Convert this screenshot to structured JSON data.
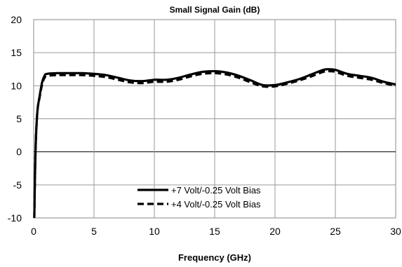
{
  "chart_data": {
    "type": "line",
    "title": "Small Signal Gain (dB)",
    "xlabel": "Frequency (GHz)",
    "ylabel": "",
    "xlim": [
      0,
      30
    ],
    "ylim": [
      -10,
      20
    ],
    "xticks": [
      0,
      5,
      10,
      15,
      20,
      25,
      30
    ],
    "yticks": [
      -10,
      -5,
      0,
      5,
      10,
      15,
      20
    ],
    "grid": true,
    "legend_position": "bottom-center",
    "series": [
      {
        "name": "+7 Volt/-0.25 Volt Bias",
        "style": "solid",
        "color": "#000000",
        "x": [
          0.05,
          0.15,
          0.3,
          0.5,
          0.7,
          0.9,
          1.1,
          2,
          3,
          4,
          5,
          6,
          7,
          8,
          9,
          10,
          11,
          12,
          13,
          14,
          15,
          16,
          17,
          18,
          19,
          20,
          21,
          22,
          23,
          24,
          24.5,
          25,
          26,
          27,
          28,
          29,
          30
        ],
        "values": [
          -10,
          0,
          6,
          8.5,
          10.5,
          11.5,
          11.8,
          11.9,
          11.9,
          11.9,
          11.8,
          11.6,
          11.2,
          10.8,
          10.7,
          10.9,
          10.9,
          11.2,
          11.7,
          12.1,
          12.2,
          12.0,
          11.5,
          10.8,
          10.1,
          10.1,
          10.5,
          11.0,
          11.7,
          12.4,
          12.5,
          12.4,
          11.8,
          11.5,
          11.2,
          10.6,
          10.2
        ]
      },
      {
        "name": "+4 Volt/-0.25 Volt Bias",
        "style": "dashed",
        "color": "#000000",
        "x": [
          0.05,
          0.15,
          0.3,
          0.5,
          0.7,
          0.9,
          1.1,
          2,
          3,
          4,
          5,
          6,
          7,
          8,
          9,
          10,
          11,
          12,
          13,
          14,
          15,
          16,
          17,
          18,
          19,
          20,
          21,
          22,
          23,
          24,
          24.5,
          25,
          26,
          27,
          28,
          29,
          30
        ],
        "values": [
          -10,
          0,
          6,
          8.3,
          10.2,
          11.2,
          11.5,
          11.6,
          11.6,
          11.6,
          11.5,
          11.3,
          10.9,
          10.5,
          10.4,
          10.6,
          10.6,
          10.9,
          11.4,
          11.8,
          11.9,
          11.7,
          11.2,
          10.5,
          9.9,
          9.9,
          10.3,
          10.8,
          11.4,
          12.1,
          12.2,
          12.1,
          11.5,
          11.2,
          10.9,
          10.4,
          10.0
        ]
      }
    ]
  }
}
